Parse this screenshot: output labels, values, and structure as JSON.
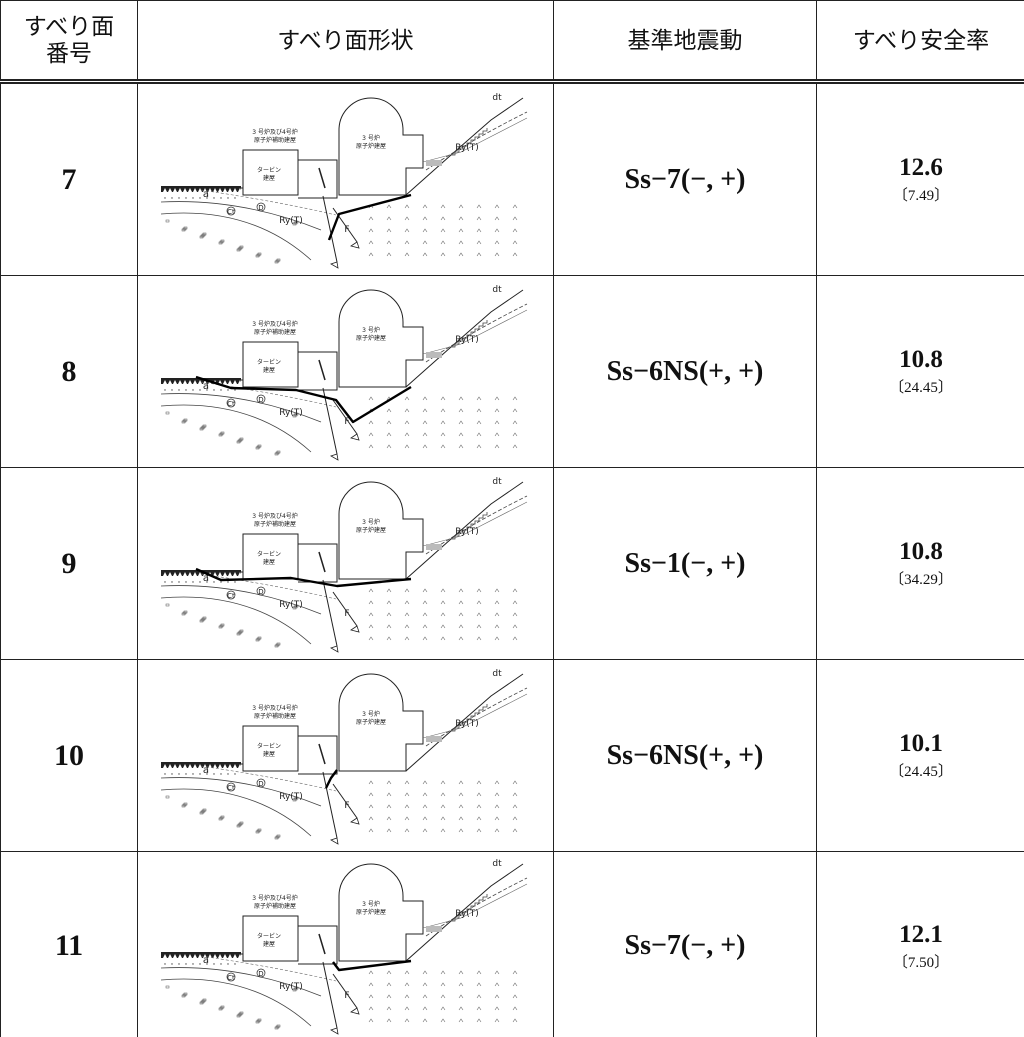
{
  "table": {
    "header": [
      "すべり面\n番号",
      "すべり面形状",
      "基準地震動",
      "すべり安全率"
    ],
    "rows": [
      {
        "id": 7,
        "ground_motion": "Ss−7(−, +)",
        "safety_factor": 12.6,
        "bracket": "〔7.49〕"
      },
      {
        "id": 8,
        "ground_motion": "Ss−6NS(+, +)",
        "safety_factor": 10.8,
        "bracket": "〔24.45〕"
      },
      {
        "id": 9,
        "ground_motion": "Ss−1(−, +)",
        "safety_factor": 10.8,
        "bracket": "〔34.29〕"
      },
      {
        "id": 10,
        "ground_motion": "Ss−6NS(+, +)",
        "safety_factor": 10.1,
        "bracket": "〔24.45〕"
      },
      {
        "id": 11,
        "ground_motion": "Ss−7(−, +)",
        "safety_factor": 12.1,
        "bracket": "〔7.50〕"
      }
    ]
  },
  "diagram_labels": {
    "aux_1": "3 号炉及び4号炉",
    "aux_2": "原子炉補助建屋",
    "reactor_1": "3 号炉",
    "reactor_2": "原子炉建屋",
    "turbine_1": "タービン",
    "turbine_2": "建屋",
    "dt": "dt",
    "ry_upper": "Ry(T)",
    "ry_lower": "Ry(T)",
    "a": "a",
    "d": "D",
    "ct": "Ct",
    "f": "F"
  }
}
